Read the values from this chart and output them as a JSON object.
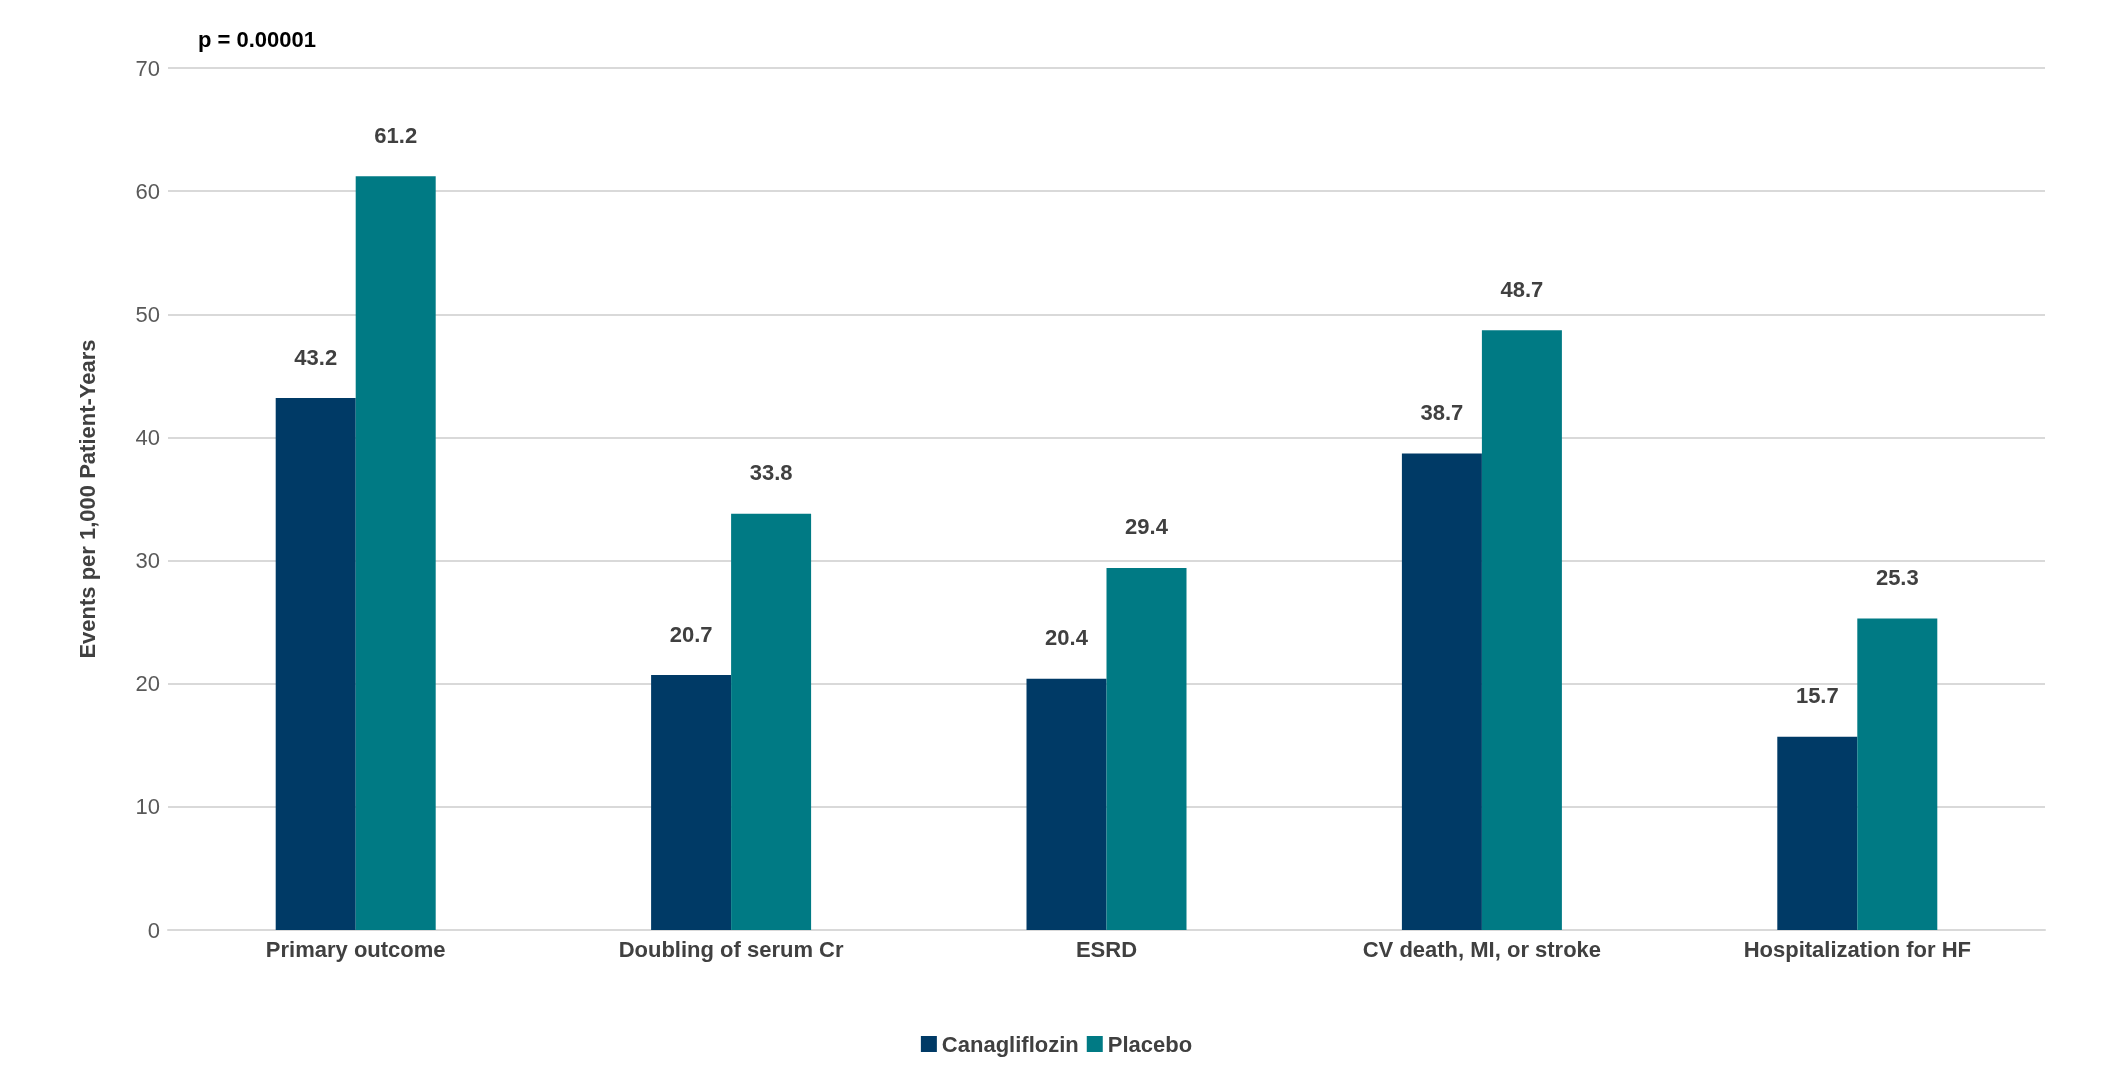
{
  "chart_data": {
    "type": "bar",
    "ylabel": "Events per 1,000 Patient-Years",
    "categories": [
      "Primary outcome",
      "Doubling of serum Cr",
      "ESRD",
      "CV death, MI, or stroke",
      "Hospitalization for HF"
    ],
    "series": [
      {
        "name": "Canagliflozin",
        "color": "#003a66",
        "values": [
          43.2,
          20.7,
          20.4,
          38.7,
          15.7
        ]
      },
      {
        "name": "Placebo",
        "color": "#007a84",
        "values": [
          61.2,
          33.8,
          29.4,
          48.7,
          25.3
        ]
      }
    ],
    "ylim": [
      0,
      70
    ],
    "yticks": [
      0,
      10,
      20,
      30,
      40,
      50,
      60,
      70
    ],
    "grid": "y",
    "legend": "bottom",
    "data_labels": true,
    "annotations": [
      "p = 0.00001"
    ]
  }
}
